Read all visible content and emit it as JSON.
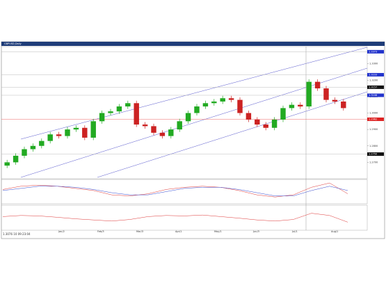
{
  "chart_data": {
    "type": "candlestick",
    "title": "GBPUSD,Daily",
    "status": "1.3076  10  09:23:04",
    "ylim": [
      1.26,
      1.34
    ],
    "yticks": [
      {
        "value": 1.27,
        "label": "1.2700"
      },
      {
        "value": 1.28,
        "label": "1.2800"
      },
      {
        "value": 1.29,
        "label": "1.2900"
      },
      {
        "value": 1.3,
        "label": "1.3000"
      },
      {
        "value": 1.31,
        "label": "1.3100"
      },
      {
        "value": 1.32,
        "label": "1.3200"
      },
      {
        "value": 1.33,
        "label": "1.3300"
      }
    ],
    "price_markers": [
      {
        "value": 1.3373,
        "label": "1.3373",
        "color": "#2233cc"
      },
      {
        "value": 1.3233,
        "label": "1.3233",
        "color": "#2233cc"
      },
      {
        "value": 1.3157,
        "label": "1.3157",
        "color": "#111111"
      },
      {
        "value": 1.3108,
        "label": "1.3108",
        "color": "#2233cc"
      },
      {
        "value": 1.2962,
        "label": "1.2962",
        "color": "#dd2222"
      },
      {
        "value": 1.275,
        "label": "1.2750",
        "color": "#111111"
      }
    ],
    "x_labels": [
      "Jan/2",
      "Feb/3",
      "Mar/3",
      "Apr/1",
      "May/1",
      "Jun/3",
      "Jul/1",
      "Aug/1"
    ],
    "open": [
      1.268,
      1.27,
      1.274,
      1.278,
      1.28,
      1.283,
      1.287,
      1.286,
      1.29,
      1.291,
      1.285,
      1.295,
      1.3,
      1.301,
      1.304,
      1.306,
      1.293,
      1.292,
      1.288,
      1.286,
      1.29,
      1.295,
      1.3,
      1.304,
      1.306,
      1.307,
      1.309,
      1.308,
      1.3,
      1.296,
      1.293,
      1.291,
      1.296,
      1.303,
      1.305,
      1.304,
      1.319,
      1.315,
      1.308,
      1.307
    ],
    "high": [
      1.2715,
      1.2755,
      1.2795,
      1.2815,
      1.2845,
      1.2885,
      1.2885,
      1.2915,
      1.2925,
      1.2925,
      1.2965,
      1.3015,
      1.3025,
      1.3055,
      1.3075,
      1.3075,
      1.2945,
      1.2935,
      1.2895,
      1.2915,
      1.2965,
      1.3015,
      1.3055,
      1.3075,
      1.3085,
      1.3105,
      1.3105,
      1.3095,
      1.3015,
      1.2975,
      1.2945,
      1.2975,
      1.3045,
      1.3065,
      1.3065,
      1.3205,
      1.3205,
      1.3165,
      1.3095,
      1.3085
    ],
    "low": [
      1.2665,
      1.2685,
      1.2725,
      1.2765,
      1.2785,
      1.2815,
      1.2845,
      1.2845,
      1.2885,
      1.2835,
      1.2835,
      1.2935,
      1.2985,
      1.2995,
      1.3025,
      1.2915,
      1.2905,
      1.2865,
      1.2845,
      1.2845,
      1.2885,
      1.2935,
      1.2985,
      1.3025,
      1.3045,
      1.3055,
      1.3065,
      1.2985,
      1.2945,
      1.2915,
      1.2895,
      1.2895,
      1.2945,
      1.3015,
      1.3025,
      1.3025,
      1.3135,
      1.3065,
      1.3055,
      1.3015
    ],
    "close": [
      1.27,
      1.274,
      1.278,
      1.28,
      1.283,
      1.287,
      1.286,
      1.29,
      1.291,
      1.285,
      1.295,
      1.3,
      1.301,
      1.304,
      1.306,
      1.293,
      1.292,
      1.288,
      1.286,
      1.29,
      1.295,
      1.3,
      1.304,
      1.306,
      1.307,
      1.309,
      1.308,
      1.3,
      1.296,
      1.293,
      1.291,
      1.296,
      1.303,
      1.305,
      1.304,
      1.319,
      1.315,
      1.308,
      1.307,
      1.303
    ],
    "up_color": "#22aa22",
    "down_color": "#cc2222",
    "oscillator": {
      "ylim": [
        -1,
        1
      ],
      "series": [
        {
          "color": "#dd3333",
          "values": [
            0.2,
            0.5,
            0.6,
            0.5,
            0.3,
            0.1,
            -0.3,
            -0.4,
            -0.2,
            0.2,
            0.4,
            0.5,
            0.4,
            0.1,
            -0.3,
            -0.5,
            -0.3,
            0.4,
            0.8,
            -0.2
          ]
        },
        {
          "color": "#3344cc",
          "values": [
            0.1,
            0.3,
            0.5,
            0.5,
            0.4,
            0.2,
            -0.1,
            -0.3,
            -0.3,
            0,
            0.3,
            0.4,
            0.4,
            0.2,
            -0.1,
            -0.4,
            -0.4,
            0.1,
            0.5,
            0.1
          ]
        }
      ]
    },
    "rsi": {
      "ylim": [
        0,
        100
      ],
      "series": [
        {
          "color": "#dd3333",
          "values": [
            55,
            60,
            58,
            52,
            45,
            40,
            35,
            42,
            55,
            60,
            58,
            62,
            55,
            48,
            40,
            35,
            42,
            70,
            60,
            30
          ]
        }
      ]
    }
  }
}
